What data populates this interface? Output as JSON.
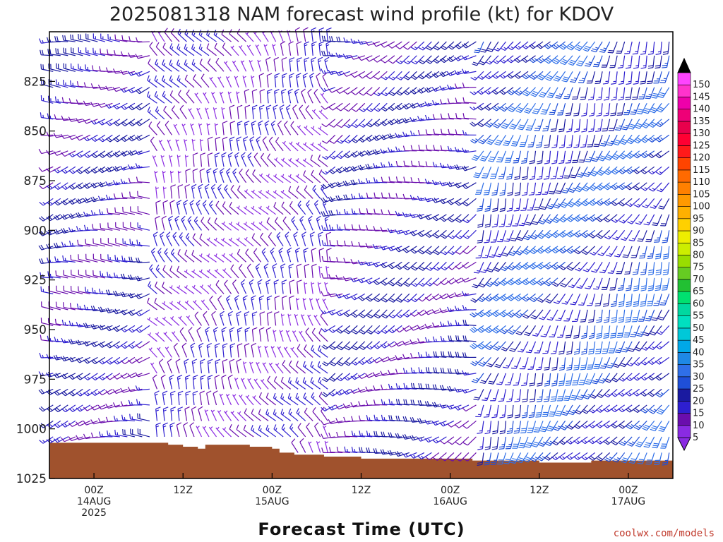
{
  "chart_data": {
    "type": "wind-barb-time-height",
    "title": "2025081318 NAM forecast wind profile (kt) for KDOV",
    "xlabel": "Forecast Time (UTC)",
    "credit": "coolwx.com/models",
    "x_ticks": [
      {
        "hour": 6,
        "lines": [
          "00Z",
          "14AUG",
          "2025"
        ]
      },
      {
        "hour": 18,
        "lines": [
          "12Z"
        ]
      },
      {
        "hour": 30,
        "lines": [
          "00Z",
          "15AUG"
        ]
      },
      {
        "hour": 42,
        "lines": [
          "12Z"
        ]
      },
      {
        "hour": 54,
        "lines": [
          "00Z",
          "16AUG"
        ]
      },
      {
        "hour": 66,
        "lines": [
          "12Z"
        ]
      },
      {
        "hour": 78,
        "lines": [
          "00Z",
          "17AUG"
        ]
      }
    ],
    "x_range_hours": [
      0,
      84
    ],
    "y_ticks": [
      825,
      850,
      875,
      900,
      925,
      950,
      975,
      1000,
      1025
    ],
    "y_range_hPa": [
      800,
      1025
    ],
    "colorbar": {
      "levels": [
        5,
        10,
        15,
        20,
        25,
        30,
        35,
        40,
        45,
        50,
        55,
        60,
        65,
        70,
        75,
        80,
        85,
        90,
        95,
        100,
        105,
        110,
        115,
        120,
        125,
        130,
        135,
        140,
        145,
        150
      ],
      "colors": [
        "#8a2be2",
        "#6a0dad",
        "#2e1fd0",
        "#1a1aa0",
        "#1f4fd8",
        "#2f6fe8",
        "#1e88e5",
        "#00a8e8",
        "#00c8d8",
        "#00e0c0",
        "#00d8a0",
        "#00e070",
        "#22c033",
        "#66cc22",
        "#99dd00",
        "#ccee00",
        "#eeee00",
        "#ffd000",
        "#ffb000",
        "#ff9900",
        "#ff8000",
        "#ff6a00",
        "#ff4400",
        "#ff1a1a",
        "#ff0033",
        "#e8004c",
        "#ee0077",
        "#ee00aa",
        "#ff33cc",
        "#ff44ff"
      ],
      "top_arrow_color": "#000000",
      "bottom_arrow_color": "#8a2be2"
    },
    "terrain_color": "#a0522d",
    "surface_pressure_hPa": [
      [
        0,
        1007
      ],
      [
        15,
        1007
      ],
      [
        16,
        1008
      ],
      [
        18,
        1009
      ],
      [
        20,
        1010
      ],
      [
        21,
        1008
      ],
      [
        26,
        1008
      ],
      [
        27,
        1009
      ],
      [
        30,
        1010
      ],
      [
        31,
        1012
      ],
      [
        33,
        1013
      ],
      [
        36,
        1013
      ],
      [
        37,
        1014
      ],
      [
        41,
        1014
      ],
      [
        42,
        1015
      ],
      [
        57,
        1016
      ],
      [
        66,
        1017
      ],
      [
        73,
        1016
      ],
      [
        84,
        1016
      ]
    ],
    "wind_field": {
      "hours_step": 1,
      "levels_hPa": [
        805,
        812,
        820,
        828,
        836,
        844,
        852,
        860,
        868,
        876,
        884,
        892,
        900,
        908,
        916,
        924,
        932,
        940,
        948,
        956,
        964,
        972,
        980,
        988,
        996,
        1004,
        1012,
        1020
      ],
      "regimes": [
        {
          "hours": [
            0,
            14
          ],
          "dir_deg": 260,
          "speed_kt": [
            10,
            20
          ]
        },
        {
          "hours": [
            14,
            38
          ],
          "dir_deg": 330,
          "speed_kt": [
            5,
            15
          ]
        },
        {
          "hours": [
            38,
            58
          ],
          "dir_deg": 250,
          "speed_kt": [
            10,
            20
          ]
        },
        {
          "hours": [
            58,
            84
          ],
          "dir_deg": 210,
          "speed_kt": [
            15,
            30
          ]
        }
      ]
    }
  }
}
